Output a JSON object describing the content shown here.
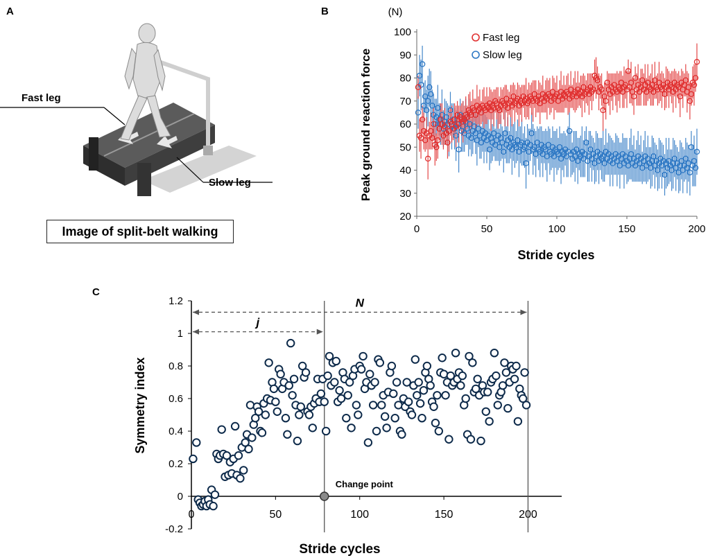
{
  "panel_a": {
    "letter": "A",
    "fast_leg_label": "Fast leg",
    "slow_leg_label": "Slow leg",
    "caption": "Image of split-belt walking"
  },
  "panel_b": {
    "letter": "B"
  },
  "panel_c": {
    "letter": "C"
  },
  "colors": {
    "fast": "#e03030",
    "slow": "#2e78c4",
    "symmetry": "#0d2a4a"
  },
  "chart_data": [
    {
      "type": "scatter",
      "title": "",
      "unit_label": "(N)",
      "xlabel": "Stride cycles",
      "ylabel": "Peak ground reaction force",
      "xlim": [
        0,
        200
      ],
      "ylim": [
        20,
        100
      ],
      "xticks": [
        0,
        50,
        100,
        150,
        200
      ],
      "yticks": [
        20,
        30,
        40,
        50,
        60,
        70,
        80,
        90,
        100
      ],
      "legend": {
        "position": "top-right",
        "entries": [
          "Fast leg",
          "Slow leg"
        ]
      },
      "series": [
        {
          "name": "Fast leg",
          "color": "#e03030",
          "description": "Starts ~55-75 N, rises gradually to ~75-80 N by 200 cycles",
          "values": [
            76,
            55,
            54,
            62,
            57,
            53,
            56,
            45,
            55,
            57,
            54,
            60,
            51,
            50,
            53,
            58,
            62,
            60,
            55,
            59,
            56,
            52,
            57,
            61,
            60,
            58,
            62,
            59,
            64,
            60,
            63,
            62,
            61,
            62,
            64,
            63,
            66,
            65,
            64,
            67,
            66,
            64,
            68,
            66,
            67,
            65,
            68,
            67,
            66,
            68,
            67,
            69,
            66,
            68,
            67,
            70,
            69,
            67,
            66,
            68,
            70,
            69,
            68,
            71,
            67,
            69,
            70,
            68,
            72,
            69,
            70,
            71,
            68,
            70,
            69,
            72,
            70,
            71,
            69,
            70,
            72,
            71,
            70,
            73,
            71,
            70,
            72,
            69,
            71,
            73,
            70,
            72,
            71,
            73,
            72,
            70,
            74,
            71,
            72,
            73,
            70,
            72,
            74,
            71,
            73,
            72,
            74,
            73,
            71,
            75,
            72,
            73,
            74,
            72,
            75,
            73,
            74,
            72,
            76,
            73,
            74,
            75,
            73,
            76,
            74,
            75,
            81,
            80,
            79,
            74,
            76,
            75,
            66,
            72,
            70,
            78,
            75,
            73,
            76,
            74,
            77,
            75,
            74,
            76,
            75,
            78,
            74,
            76,
            77,
            75,
            83,
            76,
            78,
            74,
            72,
            80,
            75,
            77,
            74,
            76,
            79,
            75,
            77,
            74,
            78,
            76,
            75,
            77,
            74,
            79,
            76,
            75,
            78,
            76,
            75,
            77,
            73,
            76,
            78,
            75,
            77,
            76,
            74,
            78,
            75,
            77,
            76,
            72,
            78,
            75,
            77,
            79,
            74,
            76,
            70,
            73,
            78,
            77,
            80,
            87
          ]
        },
        {
          "name": "Slow leg",
          "color": "#2e78c4",
          "description": "Starts ~65-86 N, decays quickly then slowly to ~40-48 N by 200 cycles",
          "values": [
            65,
            81,
            77,
            86,
            68,
            72,
            66,
            70,
            76,
            73,
            68,
            64,
            60,
            63,
            67,
            62,
            60,
            64,
            58,
            61,
            63,
            60,
            57,
            66,
            59,
            62,
            58,
            55,
            60,
            49,
            64,
            57,
            59,
            56,
            61,
            58,
            55,
            60,
            54,
            57,
            59,
            56,
            53,
            58,
            55,
            52,
            57,
            54,
            56,
            53,
            55,
            49,
            54,
            52,
            56,
            51,
            53,
            55,
            50,
            54,
            52,
            48,
            56,
            51,
            53,
            50,
            54,
            49,
            52,
            51,
            50,
            53,
            48,
            51,
            52,
            49,
            50,
            43,
            52,
            48,
            51,
            56,
            49,
            50,
            47,
            52,
            49,
            48,
            51,
            47,
            50,
            49,
            46,
            51,
            48,
            47,
            50,
            46,
            49,
            48,
            47,
            50,
            45,
            48,
            47,
            49,
            46,
            48,
            57,
            47,
            45,
            48,
            46,
            49,
            44,
            47,
            46,
            48,
            45,
            47,
            52,
            44,
            46,
            49,
            45,
            47,
            43,
            46,
            48,
            44,
            47,
            45,
            46,
            43,
            48,
            45,
            47,
            44,
            46,
            43,
            45,
            47,
            44,
            46,
            42,
            45,
            47,
            43,
            46,
            44,
            42,
            45,
            47,
            43,
            45,
            42,
            44,
            46,
            43,
            45,
            41,
            44,
            46,
            42,
            45,
            43,
            41,
            44,
            46,
            42,
            44,
            40,
            43,
            45,
            42,
            44,
            38,
            43,
            41,
            44,
            42,
            40,
            43,
            45,
            41,
            43,
            39,
            42,
            44,
            40,
            42,
            45,
            41,
            43,
            39,
            50,
            42,
            44,
            41,
            48
          ]
        }
      ]
    },
    {
      "type": "scatter",
      "title": "",
      "xlabel": "Stride cycles",
      "ylabel": "Symmetry index",
      "xlim": [
        0,
        220
      ],
      "ylim": [
        -0.2,
        1.2
      ],
      "xticks": [
        0,
        50,
        100,
        150,
        200
      ],
      "yticks": [
        -0.2,
        0,
        0.2,
        0.4,
        0.6,
        0.8,
        1,
        1.2
      ],
      "ytick_labels": [
        "-0.2",
        "0",
        "0.2",
        "0.4",
        "0.6",
        "0.8",
        "1",
        "1.2"
      ],
      "change_point": {
        "x": 79,
        "y": 0,
        "label": "Change point"
      },
      "vline_end": 200,
      "annotations": [
        {
          "text": "j",
          "from": 0,
          "to": 79,
          "y": 1.01
        },
        {
          "text": "N",
          "from": 0,
          "to": 200,
          "y": 1.13
        }
      ],
      "points": [
        [
          1,
          0.23
        ],
        [
          3,
          0.33
        ],
        [
          4,
          -0.02
        ],
        [
          5,
          -0.04
        ],
        [
          6,
          -0.06
        ],
        [
          7,
          -0.05
        ],
        [
          8,
          -0.03
        ],
        [
          9,
          -0.06
        ],
        [
          10,
          -0.02
        ],
        [
          11,
          -0.05
        ],
        [
          12,
          0.04
        ],
        [
          13,
          -0.06
        ],
        [
          14,
          0.01
        ],
        [
          15,
          0.26
        ],
        [
          16,
          0.23
        ],
        [
          17,
          0.25
        ],
        [
          18,
          0.41
        ],
        [
          19,
          0.26
        ],
        [
          20,
          0.12
        ],
        [
          21,
          0.25
        ],
        [
          22,
          0.13
        ],
        [
          23,
          0.21
        ],
        [
          24,
          0.14
        ],
        [
          25,
          0.23
        ],
        [
          26,
          0.43
        ],
        [
          27,
          0.13
        ],
        [
          28,
          0.25
        ],
        [
          29,
          0.11
        ],
        [
          30,
          0.3
        ],
        [
          31,
          0.16
        ],
        [
          32,
          0.33
        ],
        [
          33,
          0.38
        ],
        [
          34,
          0.29
        ],
        [
          35,
          0.56
        ],
        [
          36,
          0.36
        ],
        [
          37,
          0.44
        ],
        [
          38,
          0.48
        ],
        [
          39,
          0.55
        ],
        [
          40,
          0.52
        ],
        [
          41,
          0.4
        ],
        [
          42,
          0.39
        ],
        [
          43,
          0.57
        ],
        [
          44,
          0.5
        ],
        [
          45,
          0.6
        ],
        [
          46,
          0.82
        ],
        [
          47,
          0.59
        ],
        [
          48,
          0.7
        ],
        [
          49,
          0.66
        ],
        [
          50,
          0.58
        ],
        [
          51,
          0.52
        ],
        [
          52,
          0.78
        ],
        [
          53,
          0.75
        ],
        [
          54,
          0.66
        ],
        [
          55,
          0.7
        ],
        [
          56,
          0.48
        ],
        [
          57,
          0.38
        ],
        [
          58,
          0.68
        ],
        [
          59,
          0.94
        ],
        [
          60,
          0.62
        ],
        [
          61,
          0.72
        ],
        [
          62,
          0.56
        ],
        [
          63,
          0.34
        ],
        [
          64,
          0.5
        ],
        [
          65,
          0.55
        ],
        [
          66,
          0.8
        ],
        [
          67,
          0.73
        ],
        [
          68,
          0.76
        ],
        [
          69,
          0.52
        ],
        [
          70,
          0.5
        ],
        [
          71,
          0.55
        ],
        [
          72,
          0.42
        ],
        [
          73,
          0.57
        ],
        [
          74,
          0.6
        ],
        [
          75,
          0.72
        ],
        [
          76,
          0.58
        ],
        [
          77,
          0.63
        ],
        [
          78,
          0.72
        ],
        [
          79,
          0.58
        ],
        [
          80,
          0.4
        ],
        [
          81,
          0.74
        ],
        [
          82,
          0.86
        ],
        [
          83,
          0.68
        ],
        [
          84,
          0.82
        ],
        [
          85,
          0.7
        ],
        [
          86,
          0.83
        ],
        [
          87,
          0.58
        ],
        [
          88,
          0.65
        ],
        [
          89,
          0.6
        ],
        [
          90,
          0.76
        ],
        [
          91,
          0.72
        ],
        [
          92,
          0.48
        ],
        [
          93,
          0.62
        ],
        [
          94,
          0.7
        ],
        [
          95,
          0.42
        ],
        [
          96,
          0.74
        ],
        [
          97,
          0.78
        ],
        [
          98,
          0.56
        ],
        [
          99,
          0.5
        ],
        [
          100,
          0.8
        ],
        [
          101,
          0.78
        ],
        [
          102,
          0.86
        ],
        [
          103,
          0.66
        ],
        [
          104,
          0.7
        ],
        [
          105,
          0.33
        ],
        [
          106,
          0.75
        ],
        [
          107,
          0.68
        ],
        [
          108,
          0.56
        ],
        [
          109,
          0.7
        ],
        [
          110,
          0.4
        ],
        [
          111,
          0.84
        ],
        [
          112,
          0.82
        ],
        [
          113,
          0.56
        ],
        [
          114,
          0.62
        ],
        [
          115,
          0.49
        ],
        [
          116,
          0.42
        ],
        [
          117,
          0.64
        ],
        [
          118,
          0.76
        ],
        [
          119,
          0.8
        ],
        [
          120,
          0.63
        ],
        [
          121,
          0.48
        ],
        [
          122,
          0.7
        ],
        [
          123,
          0.56
        ],
        [
          124,
          0.4
        ],
        [
          125,
          0.38
        ],
        [
          126,
          0.6
        ],
        [
          127,
          0.55
        ],
        [
          128,
          0.7
        ],
        [
          129,
          0.58
        ],
        [
          130,
          0.52
        ],
        [
          131,
          0.5
        ],
        [
          132,
          0.68
        ],
        [
          133,
          0.84
        ],
        [
          134,
          0.62
        ],
        [
          135,
          0.7
        ],
        [
          136,
          0.57
        ],
        [
          137,
          0.48
        ],
        [
          138,
          0.65
        ],
        [
          139,
          0.76
        ],
        [
          140,
          0.8
        ],
        [
          141,
          0.72
        ],
        [
          142,
          0.68
        ],
        [
          143,
          0.58
        ],
        [
          144,
          0.55
        ],
        [
          145,
          0.45
        ],
        [
          146,
          0.62
        ],
        [
          147,
          0.4
        ],
        [
          148,
          0.76
        ],
        [
          149,
          0.85
        ],
        [
          150,
          0.75
        ],
        [
          151,
          0.62
        ],
        [
          152,
          0.7
        ],
        [
          153,
          0.35
        ],
        [
          154,
          0.74
        ],
        [
          155,
          0.68
        ],
        [
          156,
          0.7
        ],
        [
          157,
          0.88
        ],
        [
          158,
          0.72
        ],
        [
          159,
          0.76
        ],
        [
          160,
          0.68
        ],
        [
          161,
          0.74
        ],
        [
          162,
          0.56
        ],
        [
          163,
          0.6
        ],
        [
          164,
          0.38
        ],
        [
          165,
          0.86
        ],
        [
          166,
          0.35
        ],
        [
          167,
          0.82
        ],
        [
          168,
          0.64
        ],
        [
          169,
          0.66
        ],
        [
          170,
          0.72
        ],
        [
          171,
          0.62
        ],
        [
          172,
          0.34
        ],
        [
          173,
          0.68
        ],
        [
          174,
          0.64
        ],
        [
          175,
          0.52
        ],
        [
          176,
          0.64
        ],
        [
          177,
          0.46
        ],
        [
          178,
          0.7
        ],
        [
          179,
          0.72
        ],
        [
          180,
          0.88
        ],
        [
          181,
          0.74
        ],
        [
          182,
          0.56
        ],
        [
          183,
          0.62
        ],
        [
          184,
          0.64
        ],
        [
          185,
          0.68
        ],
        [
          186,
          0.82
        ],
        [
          187,
          0.76
        ],
        [
          188,
          0.54
        ],
        [
          189,
          0.7
        ],
        [
          190,
          0.8
        ],
        [
          191,
          0.78
        ],
        [
          192,
          0.72
        ],
        [
          193,
          0.8
        ],
        [
          194,
          0.46
        ],
        [
          195,
          0.66
        ],
        [
          196,
          0.62
        ],
        [
          197,
          0.6
        ],
        [
          198,
          0.76
        ],
        [
          199,
          0.56
        ]
      ]
    }
  ]
}
